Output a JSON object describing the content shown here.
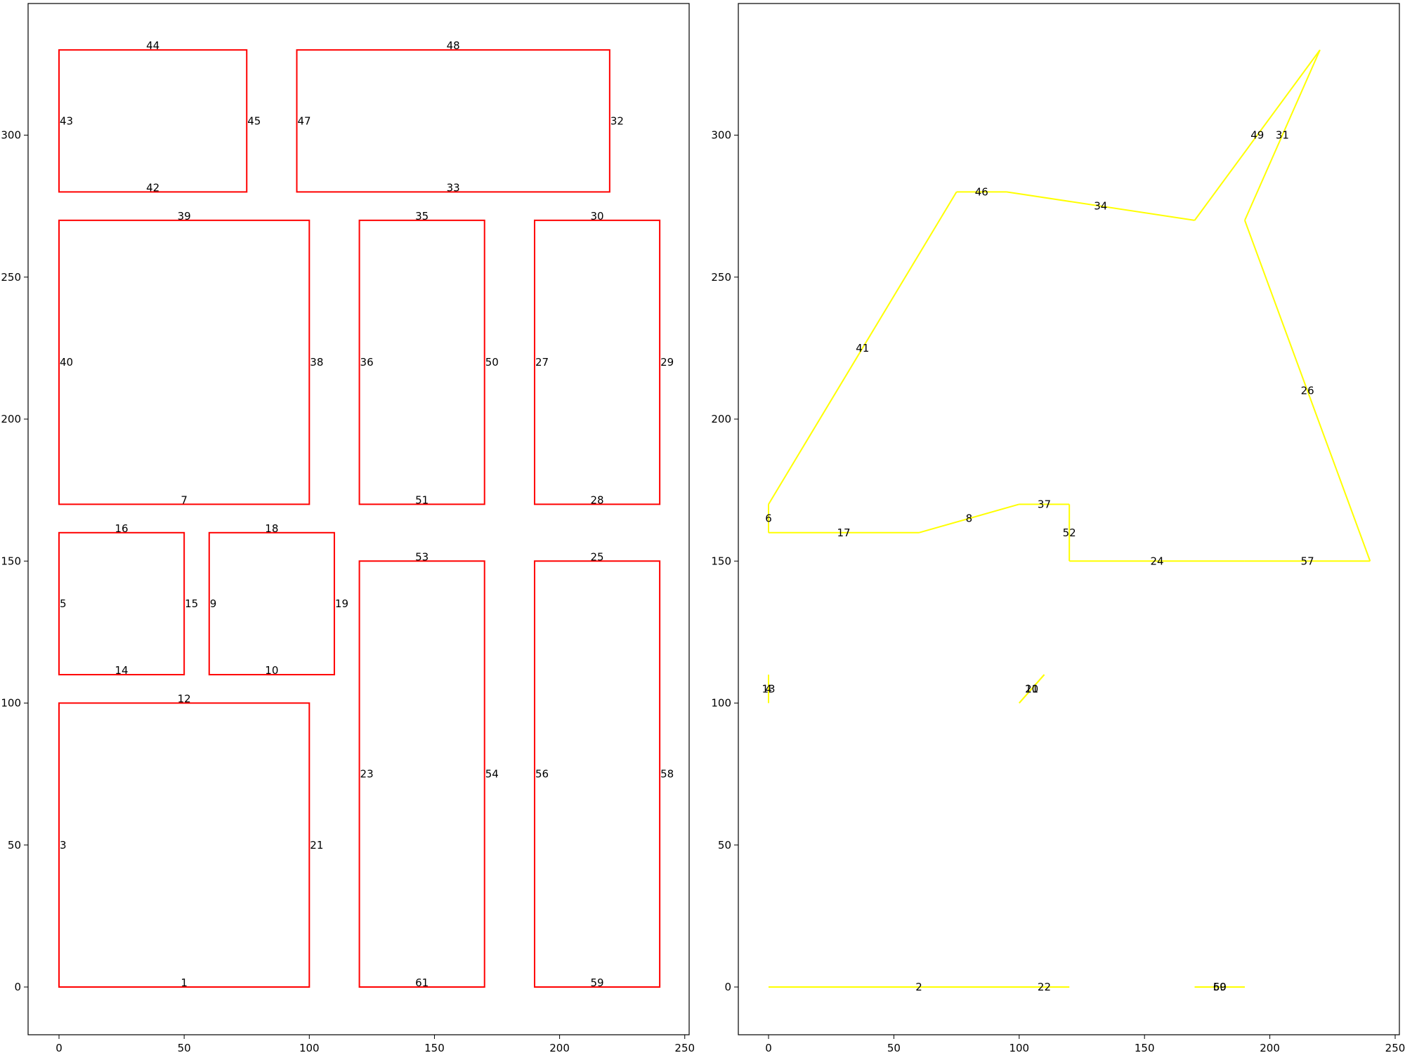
{
  "left_panel": {
    "x_ticks": [
      "0",
      "50",
      "100",
      "150",
      "200",
      "250"
    ],
    "y_ticks": [
      "0",
      "50",
      "100",
      "150",
      "200",
      "250",
      "300"
    ],
    "stroke_color": "#ff0000",
    "rectangles": [
      {
        "x0": 0,
        "y0": 0,
        "x1": 100,
        "y1": 100,
        "labels": {
          "bottom": "1",
          "left": "3",
          "right": "21",
          "top": "12"
        }
      },
      {
        "x0": 0,
        "y0": 110,
        "x1": 50,
        "y1": 160,
        "labels": {
          "bottom": "14",
          "left": "5",
          "right": "15",
          "top": "16"
        }
      },
      {
        "x0": 60,
        "y0": 110,
        "x1": 110,
        "y1": 160,
        "labels": {
          "bottom": "10",
          "left": "9",
          "right": "19",
          "top": "18"
        }
      },
      {
        "x0": 0,
        "y0": 170,
        "x1": 100,
        "y1": 270,
        "labels": {
          "bottom": "7",
          "left": "40",
          "right": "38",
          "top": "39"
        }
      },
      {
        "x0": 0,
        "y0": 280,
        "x1": 75,
        "y1": 330,
        "labels": {
          "bottom": "42",
          "left": "43",
          "right": "45",
          "top": "44"
        }
      },
      {
        "x0": 95,
        "y0": 280,
        "x1": 220,
        "y1": 330,
        "labels": {
          "bottom": "33",
          "left": "47",
          "right": "32",
          "top": "48"
        }
      },
      {
        "x0": 120,
        "y0": 170,
        "x1": 170,
        "y1": 270,
        "labels": {
          "bottom": "51",
          "left": "36",
          "right": "50",
          "top": "35"
        }
      },
      {
        "x0": 190,
        "y0": 170,
        "x1": 240,
        "y1": 270,
        "labels": {
          "bottom": "28",
          "left": "27",
          "right": "29",
          "top": "30"
        }
      },
      {
        "x0": 120,
        "y0": 0,
        "x1": 170,
        "y1": 150,
        "labels": {
          "bottom": "61",
          "left": "23",
          "right": "54",
          "top": "53"
        }
      },
      {
        "x0": 190,
        "y0": 0,
        "x1": 240,
        "y1": 150,
        "labels": {
          "bottom": "59",
          "left": "56",
          "right": "58",
          "top": "25"
        }
      }
    ]
  },
  "right_panel": {
    "x_ticks": [
      "0",
      "50",
      "100",
      "150",
      "200",
      "250"
    ],
    "y_ticks": [
      "0",
      "50",
      "100",
      "150",
      "200",
      "250",
      "300"
    ],
    "stroke_color": "#ffff00",
    "segments": [
      {
        "x0": 0,
        "y0": 170,
        "x1": 0,
        "y1": 160,
        "label": "6"
      },
      {
        "x0": 0,
        "y0": 160,
        "x1": 60,
        "y1": 160,
        "label": "17"
      },
      {
        "x0": 60,
        "y0": 160,
        "x1": 100,
        "y1": 170,
        "label": "8"
      },
      {
        "x0": 100,
        "y0": 170,
        "x1": 120,
        "y1": 170,
        "label": "37"
      },
      {
        "x0": 120,
        "y0": 170,
        "x1": 120,
        "y1": 150,
        "label": "52"
      },
      {
        "x0": 120,
        "y0": 150,
        "x1": 190,
        "y1": 150,
        "label": "24"
      },
      {
        "x0": 190,
        "y0": 150,
        "x1": 240,
        "y1": 150,
        "label": "57"
      },
      {
        "x0": 240,
        "y0": 150,
        "x1": 190,
        "y1": 270,
        "label": "26"
      },
      {
        "x0": 190,
        "y0": 270,
        "x1": 220,
        "y1": 330,
        "label": "31"
      },
      {
        "x0": 220,
        "y0": 330,
        "x1": 170,
        "y1": 270,
        "label": "49"
      },
      {
        "x0": 170,
        "y0": 270,
        "x1": 95,
        "y1": 280,
        "label": "34"
      },
      {
        "x0": 95,
        "y0": 280,
        "x1": 75,
        "y1": 280,
        "label": "46"
      },
      {
        "x0": 75,
        "y0": 280,
        "x1": 0,
        "y1": 170,
        "label": "41"
      },
      {
        "x0": 0,
        "y0": 0,
        "x1": 120,
        "y1": 0,
        "label": "2"
      },
      {
        "x0": 100,
        "y0": 0,
        "x1": 120,
        "y1": 0,
        "label": "22"
      },
      {
        "x0": 170,
        "y0": 0,
        "x1": 190,
        "y1": 0,
        "label": "59"
      },
      {
        "x0": 170,
        "y0": 0,
        "x1": 190,
        "y1": 0,
        "label": "60"
      },
      {
        "x0": 0,
        "y0": 100,
        "x1": 0,
        "y1": 110,
        "label": "4"
      },
      {
        "x0": 0,
        "y0": 100,
        "x1": 0,
        "y1": 110,
        "label": "13"
      },
      {
        "x0": 100,
        "y0": 100,
        "x1": 110,
        "y1": 110,
        "label": "11"
      },
      {
        "x0": 100,
        "y0": 100,
        "x1": 110,
        "y1": 110,
        "label": "20"
      }
    ]
  }
}
